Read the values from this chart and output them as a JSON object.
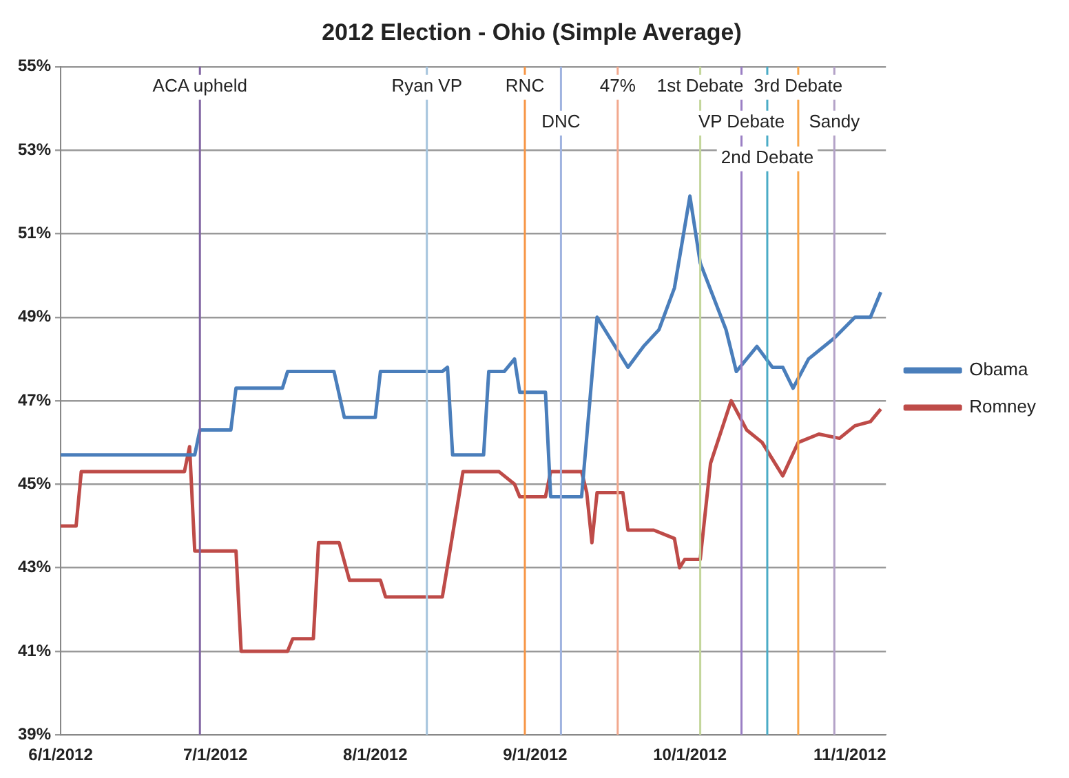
{
  "chart_data": {
    "type": "line",
    "title": "2012 Election - Ohio (Simple Average)",
    "series": [
      {
        "name": "Obama",
        "color": "#4a7ebb",
        "x": [
          "2012-06-01",
          "2012-06-27",
          "2012-06-28",
          "2012-07-04",
          "2012-07-05",
          "2012-07-14",
          "2012-07-15",
          "2012-07-24",
          "2012-07-26",
          "2012-08-01",
          "2012-08-02",
          "2012-08-14",
          "2012-08-15",
          "2012-08-16",
          "2012-08-22",
          "2012-08-23",
          "2012-08-26",
          "2012-08-28",
          "2012-08-29",
          "2012-09-03",
          "2012-09-04",
          "2012-09-10",
          "2012-09-13",
          "2012-09-19",
          "2012-09-22",
          "2012-09-25",
          "2012-09-28",
          "2012-10-01",
          "2012-10-03",
          "2012-10-08",
          "2012-10-10",
          "2012-10-14",
          "2012-10-17",
          "2012-10-19",
          "2012-10-21",
          "2012-10-24",
          "2012-10-29",
          "2012-11-02",
          "2012-11-05",
          "2012-11-07"
        ],
        "values": [
          45.7,
          45.7,
          46.3,
          46.3,
          47.3,
          47.3,
          47.7,
          47.7,
          46.6,
          46.6,
          47.7,
          47.7,
          47.8,
          45.7,
          45.7,
          47.7,
          47.7,
          48.0,
          47.2,
          47.2,
          44.7,
          44.7,
          49.0,
          47.8,
          48.3,
          48.7,
          49.7,
          51.9,
          50.3,
          48.7,
          47.7,
          48.3,
          47.8,
          47.8,
          47.3,
          48.0,
          48.5,
          49.0,
          49.0,
          49.6
        ]
      },
      {
        "name": "Romney",
        "color": "#be4b48",
        "x": [
          "2012-06-01",
          "2012-06-04",
          "2012-06-05",
          "2012-06-25",
          "2012-06-26",
          "2012-06-27",
          "2012-07-05",
          "2012-07-06",
          "2012-07-15",
          "2012-07-16",
          "2012-07-20",
          "2012-07-21",
          "2012-07-25",
          "2012-07-27",
          "2012-08-02",
          "2012-08-03",
          "2012-08-14",
          "2012-08-18",
          "2012-08-25",
          "2012-08-28",
          "2012-08-29",
          "2012-09-03",
          "2012-09-04",
          "2012-09-10",
          "2012-09-11",
          "2012-09-12",
          "2012-09-13",
          "2012-09-18",
          "2012-09-19",
          "2012-09-24",
          "2012-09-28",
          "2012-09-29",
          "2012-09-30",
          "2012-10-03",
          "2012-10-05",
          "2012-10-09",
          "2012-10-12",
          "2012-10-15",
          "2012-10-17",
          "2012-10-19",
          "2012-10-22",
          "2012-10-26",
          "2012-10-30",
          "2012-11-02",
          "2012-11-05",
          "2012-11-07"
        ],
        "values": [
          44.0,
          44.0,
          45.3,
          45.3,
          45.9,
          43.4,
          43.4,
          41.0,
          41.0,
          41.3,
          41.3,
          43.6,
          43.6,
          42.7,
          42.7,
          42.3,
          42.3,
          45.3,
          45.3,
          45.0,
          44.7,
          44.7,
          45.3,
          45.3,
          44.8,
          43.6,
          44.8,
          44.8,
          43.9,
          43.9,
          43.7,
          43.0,
          43.2,
          43.2,
          45.5,
          47.0,
          46.3,
          46.0,
          45.6,
          45.2,
          46.0,
          46.2,
          46.1,
          46.4,
          46.5,
          46.8
        ]
      }
    ],
    "xlim": [
      "2012-06-01",
      "2012-11-08"
    ],
    "xticks": [
      {
        "value": "2012-06-01",
        "label": "6/1/2012"
      },
      {
        "value": "2012-07-01",
        "label": "7/1/2012"
      },
      {
        "value": "2012-08-01",
        "label": "8/1/2012"
      },
      {
        "value": "2012-09-01",
        "label": "9/1/2012"
      },
      {
        "value": "2012-10-01",
        "label": "10/1/2012"
      },
      {
        "value": "2012-11-01",
        "label": "11/1/2012"
      }
    ],
    "ylim": [
      39,
      55
    ],
    "yticks": [
      {
        "value": 39,
        "label": "39%"
      },
      {
        "value": 41,
        "label": "41%"
      },
      {
        "value": 43,
        "label": "43%"
      },
      {
        "value": 45,
        "label": "45%"
      },
      {
        "value": 47,
        "label": "47%"
      },
      {
        "value": 49,
        "label": "49%"
      },
      {
        "value": 51,
        "label": "51%"
      },
      {
        "value": 53,
        "label": "53%"
      },
      {
        "value": 55,
        "label": "55%"
      }
    ],
    "ref_lines": [
      {
        "axis": "x",
        "value": "2012-06-28",
        "label": "ACA upheld",
        "color": "#8064a2"
      },
      {
        "axis": "x",
        "value": "2012-08-11",
        "label": "Ryan VP",
        "color": "#a5c4dd"
      },
      {
        "axis": "x",
        "value": "2012-08-30",
        "label": "RNC",
        "color": "#f79646"
      },
      {
        "axis": "x",
        "value": "2012-09-06",
        "label": "DNC",
        "color": "#9fb3e0"
      },
      {
        "axis": "x",
        "value": "2012-09-17",
        "label": "47%",
        "color": "#f2a98f"
      },
      {
        "axis": "x",
        "value": "2012-10-03",
        "label": "1st Debate",
        "color": "#c3d69b"
      },
      {
        "axis": "x",
        "value": "2012-10-11",
        "label": "VP Debate",
        "color": "#9b7fc4"
      },
      {
        "axis": "x",
        "value": "2012-10-16",
        "label": "2nd Debate",
        "color": "#4bacc6"
      },
      {
        "axis": "x",
        "value": "2012-10-22",
        "label": "3rd Debate",
        "color": "#f9a64b"
      },
      {
        "axis": "x",
        "value": "2012-10-29",
        "label": "Sandy",
        "color": "#b3a2c7"
      }
    ],
    "grid": "y",
    "legend": "right",
    "marker": "none",
    "line_style": "solid"
  }
}
